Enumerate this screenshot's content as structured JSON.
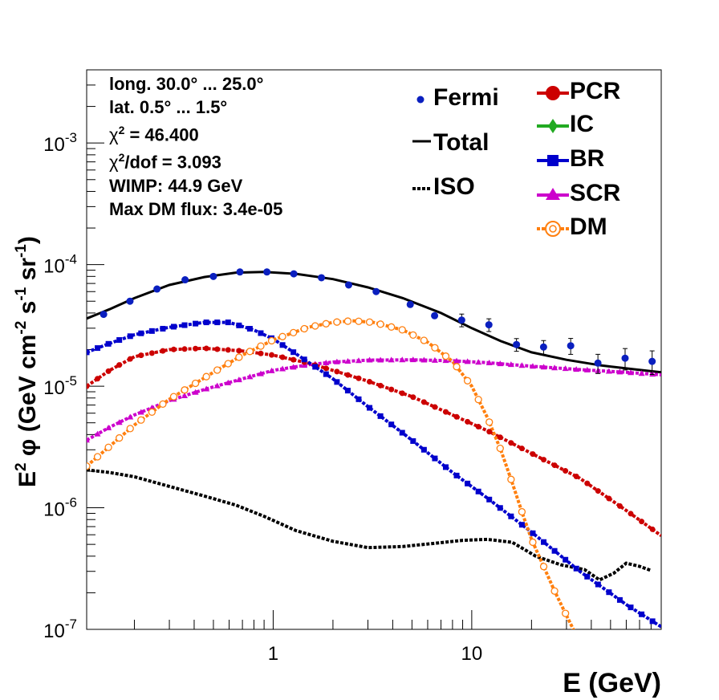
{
  "chart_data": {
    "type": "line",
    "xlabel": "E (GeV)",
    "ylabel_parts": [
      "E",
      "2",
      " φ (GeV cm",
      "-2",
      " s",
      "-1",
      " sr",
      "-1",
      ")"
    ],
    "xscale": "log",
    "yscale": "log",
    "xlim": [
      0.115,
      90
    ],
    "ylim": [
      1e-07,
      0.004
    ],
    "x_ticks": [
      {
        "value": 1,
        "label": "1"
      },
      {
        "value": 10,
        "label": "10"
      }
    ],
    "y_ticks": [
      {
        "value": 1e-07,
        "base": "10",
        "exp": "-7"
      },
      {
        "value": 1e-06,
        "base": "10",
        "exp": "-6"
      },
      {
        "value": 1e-05,
        "base": "10",
        "exp": "-5"
      },
      {
        "value": 0.0001,
        "base": "10",
        "exp": "-4"
      },
      {
        "value": 0.001,
        "base": "10",
        "exp": "-3"
      }
    ],
    "info_lines": [
      {
        "text": "long. 30.0° ... 25.0°"
      },
      {
        "text": "lat. 0.5° ... 1.5°"
      },
      {
        "chi": "χ",
        "sup": "2",
        "text": " = 46.400"
      },
      {
        "chi": "χ",
        "sup": "2",
        "text": "/dof = 3.093"
      },
      {
        "text": "WIMP: 44.9 GeV"
      },
      {
        "text": "Max DM flux: 3.4e-05"
      }
    ],
    "legend": [
      {
        "key": "fermi",
        "label": "Fermi",
        "color": "#0a1fbf",
        "marker": "dot"
      },
      {
        "key": "total",
        "label": "Total",
        "color": "#000000",
        "marker": "line"
      },
      {
        "key": "iso",
        "label": "ISO",
        "color": "#000000",
        "marker": "dotted"
      },
      {
        "key": "pcr",
        "label": "PCR",
        "color": "#cc0000",
        "marker": "circle"
      },
      {
        "key": "ic",
        "label": "IC",
        "color": "#22aa22",
        "marker": "diamond"
      },
      {
        "key": "br",
        "label": "BR",
        "color": "#0000cc",
        "marker": "square"
      },
      {
        "key": "scr",
        "label": "SCR",
        "color": "#cc00cc",
        "marker": "triangle"
      },
      {
        "key": "dm",
        "label": "DM",
        "color": "#ff7f0e",
        "marker": "opencircle"
      }
    ],
    "fermi_points": [
      {
        "x": 0.14,
        "y": 3.9e-05,
        "err": 0
      },
      {
        "x": 0.19,
        "y": 5e-05,
        "err": 0
      },
      {
        "x": 0.26,
        "y": 6.3e-05,
        "err": 0
      },
      {
        "x": 0.36,
        "y": 7.5e-05,
        "err": 0
      },
      {
        "x": 0.5,
        "y": 8e-05,
        "err": 0
      },
      {
        "x": 0.68,
        "y": 8.7e-05,
        "err": 0
      },
      {
        "x": 0.93,
        "y": 8.7e-05,
        "err": 0
      },
      {
        "x": 1.27,
        "y": 8.4e-05,
        "err": 0
      },
      {
        "x": 1.75,
        "y": 7.8e-05,
        "err": 0
      },
      {
        "x": 2.4,
        "y": 6.8e-05,
        "err": 0
      },
      {
        "x": 3.3,
        "y": 6e-05,
        "err": 0
      },
      {
        "x": 4.9,
        "y": 4.7e-05,
        "err": 0
      },
      {
        "x": 6.5,
        "y": 3.8e-05,
        "err": 0
      },
      {
        "x": 8.9,
        "y": 3.5e-05,
        "err": 0.12
      },
      {
        "x": 12.2,
        "y": 3.2e-05,
        "err": 0.12
      },
      {
        "x": 16.8,
        "y": 2.2e-05,
        "err": 0.12
      },
      {
        "x": 23.0,
        "y": 2.1e-05,
        "err": 0.13
      },
      {
        "x": 31.5,
        "y": 2.15e-05,
        "err": 0.15
      },
      {
        "x": 43.2,
        "y": 1.55e-05,
        "err": 0.18
      },
      {
        "x": 59.2,
        "y": 1.7e-05,
        "err": 0.2
      },
      {
        "x": 81.0,
        "y": 1.6e-05,
        "err": 0.22
      }
    ],
    "series": [
      {
        "key": "total",
        "name": "Total",
        "color": "#000000",
        "dash": "solid",
        "points": [
          [
            0.115,
            3.6e-05
          ],
          [
            0.15,
            4.3e-05
          ],
          [
            0.2,
            5.3e-05
          ],
          [
            0.3,
            6.8e-05
          ],
          [
            0.45,
            7.9e-05
          ],
          [
            0.65,
            8.6e-05
          ],
          [
            0.9,
            8.7e-05
          ],
          [
            1.3,
            8.4e-05
          ],
          [
            2.0,
            7.6e-05
          ],
          [
            3.0,
            6.5e-05
          ],
          [
            4.5,
            5.3e-05
          ],
          [
            7.0,
            4e-05
          ],
          [
            10.0,
            3e-05
          ],
          [
            14.0,
            2.35e-05
          ],
          [
            20.0,
            1.9e-05
          ],
          [
            30.0,
            1.65e-05
          ],
          [
            45.0,
            1.48e-05
          ],
          [
            65.0,
            1.38e-05
          ],
          [
            90.0,
            1.3e-05
          ]
        ]
      },
      {
        "key": "iso",
        "name": "ISO",
        "color": "#000000",
        "dash": "dotted",
        "points": [
          [
            0.115,
            2.05e-06
          ],
          [
            0.15,
            1.95e-06
          ],
          [
            0.2,
            1.8e-06
          ],
          [
            0.3,
            1.5e-06
          ],
          [
            0.45,
            1.25e-06
          ],
          [
            0.65,
            1.05e-06
          ],
          [
            0.9,
            8.5e-07
          ],
          [
            1.3,
            6.5e-07
          ],
          [
            2.0,
            5.3e-07
          ],
          [
            3.0,
            4.7e-07
          ],
          [
            4.5,
            4.8e-07
          ],
          [
            6.5,
            5.1e-07
          ],
          [
            9.0,
            5.4e-07
          ],
          [
            12.0,
            5.5e-07
          ],
          [
            16.0,
            5.2e-07
          ],
          [
            21.0,
            4e-07
          ],
          [
            28.0,
            3.4e-07
          ],
          [
            37.0,
            3.1e-07
          ],
          [
            44.0,
            2.55e-07
          ],
          [
            52.0,
            2.9e-07
          ],
          [
            60.0,
            3.5e-07
          ],
          [
            70.0,
            3.3e-07
          ],
          [
            80.0,
            3.05e-07
          ]
        ]
      },
      {
        "key": "scr",
        "name": "SCR",
        "color": "#cc00cc",
        "dash": "dotted",
        "points": [
          [
            0.115,
            3.6e-06
          ],
          [
            0.15,
            4.6e-06
          ],
          [
            0.2,
            5.8e-06
          ],
          [
            0.3,
            7.6e-06
          ],
          [
            0.45,
            9.4e-06
          ],
          [
            0.7,
            1.15e-05
          ],
          [
            1.0,
            1.35e-05
          ],
          [
            1.5,
            1.5e-05
          ],
          [
            2.0,
            1.58e-05
          ],
          [
            3.0,
            1.64e-05
          ],
          [
            5.0,
            1.65e-05
          ],
          [
            8.0,
            1.62e-05
          ],
          [
            12.0,
            1.56e-05
          ],
          [
            20.0,
            1.46e-05
          ],
          [
            35.0,
            1.37e-05
          ],
          [
            60.0,
            1.3e-05
          ],
          [
            90.0,
            1.24e-05
          ]
        ]
      },
      {
        "key": "pcr",
        "name": "PCR",
        "color": "#cc0000",
        "dash": "dotted",
        "points": [
          [
            0.115,
            1e-05
          ],
          [
            0.15,
            1.35e-05
          ],
          [
            0.2,
            1.75e-05
          ],
          [
            0.3,
            2e-05
          ],
          [
            0.45,
            2.05e-05
          ],
          [
            0.7,
            1.95e-05
          ],
          [
            1.0,
            1.8e-05
          ],
          [
            1.5,
            1.55e-05
          ],
          [
            2.0,
            1.35e-05
          ],
          [
            3.0,
            1.1e-05
          ],
          [
            5.0,
            8.2e-06
          ],
          [
            8.0,
            5.8e-06
          ],
          [
            12.0,
            4.3e-06
          ],
          [
            20.0,
            2.8e-06
          ],
          [
            35.0,
            1.75e-06
          ],
          [
            60.0,
            9.5e-07
          ],
          [
            90.0,
            5.9e-07
          ]
        ]
      },
      {
        "key": "br",
        "name": "BR",
        "color": "#0000cc",
        "dash": "dotted",
        "points": [
          [
            0.115,
            1.9e-05
          ],
          [
            0.15,
            2.25e-05
          ],
          [
            0.2,
            2.65e-05
          ],
          [
            0.3,
            3.05e-05
          ],
          [
            0.45,
            3.35e-05
          ],
          [
            0.6,
            3.35e-05
          ],
          [
            0.8,
            2.9e-05
          ],
          [
            1.0,
            2.45e-05
          ],
          [
            1.3,
            1.85e-05
          ],
          [
            2.0,
            1.15e-05
          ],
          [
            3.0,
            6.8e-06
          ],
          [
            5.0,
            3.6e-06
          ],
          [
            8.0,
            1.95e-06
          ],
          [
            12.0,
            1.2e-06
          ],
          [
            20.0,
            6.3e-07
          ],
          [
            35.0,
            3e-07
          ],
          [
            60.0,
            1.6e-07
          ],
          [
            90.0,
            1.05e-07
          ]
        ]
      },
      {
        "key": "dm",
        "name": "DM",
        "color": "#ff7f0e",
        "dash": "dotted",
        "points": [
          [
            0.115,
            2.2e-06
          ],
          [
            0.15,
            3.2e-06
          ],
          [
            0.2,
            4.8e-06
          ],
          [
            0.3,
            7.8e-06
          ],
          [
            0.5,
            1.3e-05
          ],
          [
            0.7,
            1.8e-05
          ],
          [
            1.0,
            2.4e-05
          ],
          [
            1.5,
            3.05e-05
          ],
          [
            2.0,
            3.35e-05
          ],
          [
            2.5,
            3.45e-05
          ],
          [
            3.2,
            3.35e-05
          ],
          [
            4.5,
            2.9e-05
          ],
          [
            6.0,
            2.3e-05
          ],
          [
            8.0,
            1.6e-05
          ],
          [
            10.0,
            1e-05
          ],
          [
            12.0,
            5.5e-06
          ],
          [
            14.0,
            3e-06
          ],
          [
            16.0,
            1.6e-06
          ],
          [
            18.0,
            9e-07
          ],
          [
            20.0,
            5.5e-07
          ],
          [
            23.0,
            3.3e-07
          ],
          [
            26.0,
            2.1e-07
          ],
          [
            30.0,
            1.3e-07
          ],
          [
            33.0,
            9.5e-08
          ]
        ]
      }
    ]
  }
}
